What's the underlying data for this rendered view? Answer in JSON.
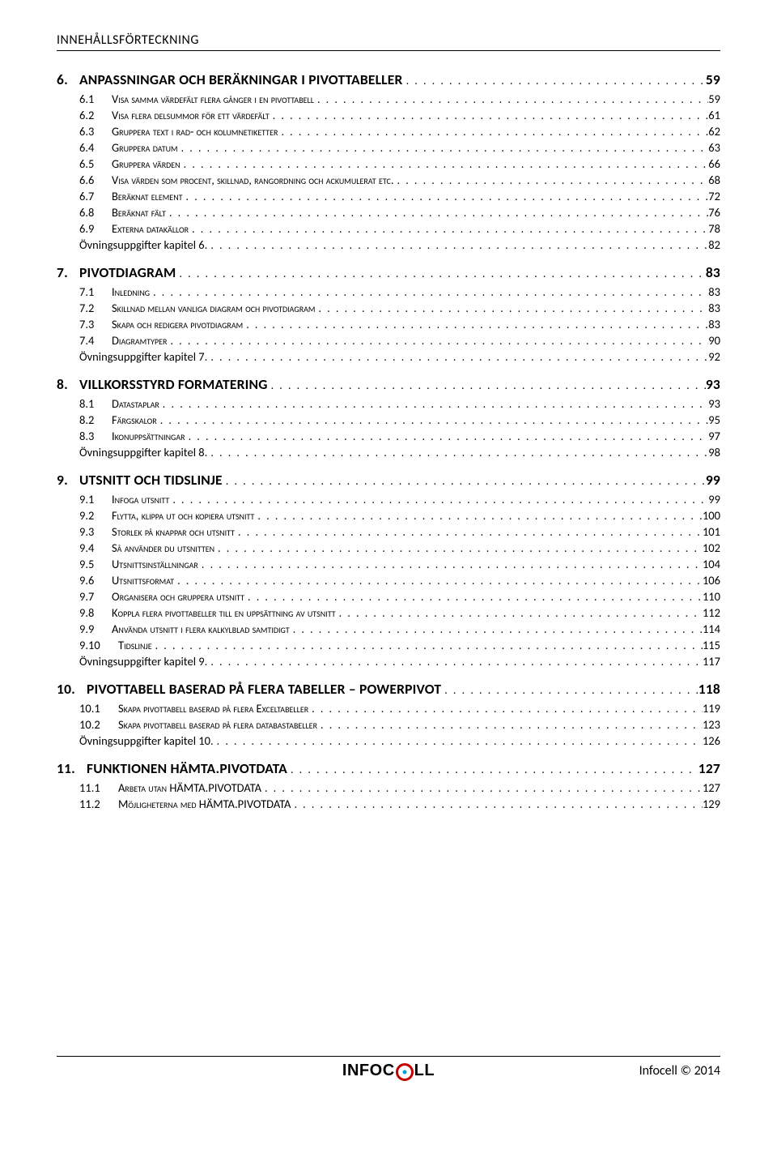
{
  "header": "INNEHÅLLSFÖRTECKNING",
  "footer_brand_left": "INFOC",
  "footer_brand_right": "LL",
  "footer_right": "Infocell © 2014",
  "toc": [
    {
      "type": "chapter",
      "num": "6.",
      "title": "ANPASSNINGAR OCH BERÄKNINGAR I PIVOTTABELLER",
      "page": "59"
    },
    {
      "type": "sub",
      "num": "6.1",
      "title": "Visa samma värdefält flera gånger i en pivottabell",
      "page": "59"
    },
    {
      "type": "sub",
      "num": "6.2",
      "title": "Visa flera delsummor för ett värdefält",
      "page": "61"
    },
    {
      "type": "sub",
      "num": "6.3",
      "title": "Gruppera text i rad- och kolumnetiketter",
      "page": "62"
    },
    {
      "type": "sub",
      "num": "6.4",
      "title": "Gruppera datum",
      "page": "63"
    },
    {
      "type": "sub",
      "num": "6.5",
      "title": "Gruppera värden",
      "page": "66"
    },
    {
      "type": "sub",
      "num": "6.6",
      "title": "Visa värden som procent, skillnad, rangordning och ackumulerat etc.",
      "page": "68"
    },
    {
      "type": "sub",
      "num": "6.7",
      "title": "Beräknat element",
      "page": "72"
    },
    {
      "type": "sub",
      "num": "6.8",
      "title": "Beräknat fält",
      "page": "76"
    },
    {
      "type": "sub",
      "num": "6.9",
      "title": "Externa datakällor",
      "page": "78"
    },
    {
      "type": "basic",
      "title": "Övningsuppgifter kapitel 6.",
      "page": "82"
    },
    {
      "type": "chapter",
      "num": "7.",
      "title": "PIVOTDIAGRAM",
      "page": "83"
    },
    {
      "type": "sub",
      "num": "7.1",
      "title": "Inledning",
      "page": "83"
    },
    {
      "type": "sub",
      "num": "7.2",
      "title": "Skillnad mellan vanliga diagram och pivotdiagram",
      "page": "83"
    },
    {
      "type": "sub",
      "num": "7.3",
      "title": "Skapa och redigera pivotdiagram",
      "page": "83"
    },
    {
      "type": "sub",
      "num": "7.4",
      "title": "Diagramtyper",
      "page": "90"
    },
    {
      "type": "basic",
      "title": "Övningsuppgifter kapitel 7.",
      "page": "92"
    },
    {
      "type": "chapter",
      "num": "8.",
      "title": "VILLKORSSTYRD FORMATERING",
      "page": "93"
    },
    {
      "type": "sub",
      "num": "8.1",
      "title": "Datastaplar",
      "page": "93"
    },
    {
      "type": "sub",
      "num": "8.2",
      "title": "Färgskalor",
      "page": "95"
    },
    {
      "type": "sub",
      "num": "8.3",
      "title": "Ikonuppsättningar",
      "page": "97"
    },
    {
      "type": "basic",
      "title": "Övningsuppgifter kapitel 8.",
      "page": "98"
    },
    {
      "type": "chapter",
      "num": "9.",
      "title": "UTSNITT OCH TIDSLINJE",
      "page": "99"
    },
    {
      "type": "sub",
      "num": "9.1",
      "title": "Infoga utsnitt",
      "page": "99"
    },
    {
      "type": "sub",
      "num": "9.2",
      "title": "Flytta, klippa ut och kopiera utsnitt",
      "page": "100"
    },
    {
      "type": "sub",
      "num": "9.3",
      "title": "Storlek på knappar och utsnitt",
      "page": "101"
    },
    {
      "type": "sub",
      "num": "9.4",
      "title": "Så använder du utsnitten",
      "page": "102"
    },
    {
      "type": "sub",
      "num": "9.5",
      "title": "Utsnittsinställningar",
      "page": "104"
    },
    {
      "type": "sub",
      "num": "9.6",
      "title": "Utsnittsformat",
      "page": "106"
    },
    {
      "type": "sub",
      "num": "9.7",
      "title": "Organisera och gruppera utsnitt",
      "page": "110"
    },
    {
      "type": "sub",
      "num": "9.8",
      "title": "Koppla flera pivottabeller till en uppsättning av utsnitt",
      "page": "112"
    },
    {
      "type": "sub",
      "num": "9.9",
      "title": "Använda utsnitt i flera kalkylblad samtidigt",
      "page": "114"
    },
    {
      "type": "sub",
      "num": "9.10",
      "title": "Tidslinje",
      "page": "115",
      "wide": true
    },
    {
      "type": "basic",
      "title": "Övningsuppgifter kapitel 9.",
      "page": "117"
    },
    {
      "type": "chapter",
      "num": "10.",
      "title": "PIVOTTABELL BASERAD PÅ FLERA TABELLER – POWERPIVOT",
      "page": "118"
    },
    {
      "type": "sub",
      "num": "10.1",
      "title": "Skapa pivottabell baserad på flera Exceltabeller",
      "page": "119",
      "wide": true
    },
    {
      "type": "sub",
      "num": "10.2",
      "title": "Skapa pivottabell baserad på flera databastabeller",
      "page": "123",
      "wide": true
    },
    {
      "type": "basic",
      "title": "Övningsuppgifter kapitel 10.",
      "page": "126"
    },
    {
      "type": "chapter",
      "num": "11.",
      "title": "FUNKTIONEN HÄMTA.PIVOTDATA",
      "page": "127"
    },
    {
      "type": "sub",
      "num": "11.1",
      "title": "Arbeta utan HÄMTA.PIVOTDATA",
      "page": "127",
      "wide": true
    },
    {
      "type": "sub",
      "num": "11.2",
      "title": "Möjligheterna med HÄMTA.PIVOTDATA",
      "page": "129",
      "wide": true
    }
  ]
}
